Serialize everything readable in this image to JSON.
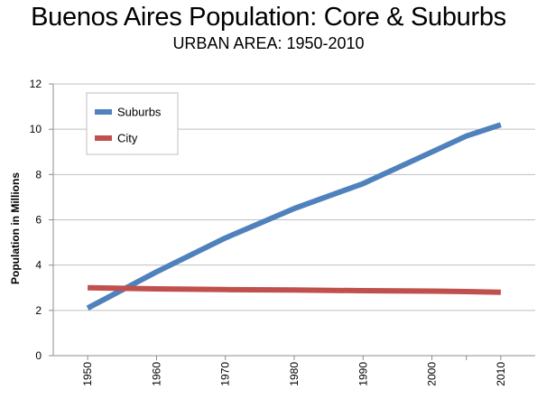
{
  "header": {
    "title": "Buenos Aires Population: Core & Suburbs",
    "subtitle": "URBAN AREA: 1950-2010"
  },
  "chart_data": {
    "type": "line",
    "title": "Buenos Aires Population: Core & Suburbs",
    "subtitle": "URBAN AREA: 1950-2010",
    "xlabel": "",
    "ylabel": "Population in Millions",
    "x": [
      1950,
      1960,
      1970,
      1980,
      1990,
      2000,
      2005,
      2010
    ],
    "xticks": [
      "1950",
      "1960",
      "1970",
      "1980",
      "1990",
      "2000",
      "2010"
    ],
    "ylim": [
      0,
      12
    ],
    "yticks": [
      "0",
      "2",
      "4",
      "6",
      "8",
      "10",
      "12"
    ],
    "grid": true,
    "legend_position": "top-left",
    "series": [
      {
        "name": "Suburbs",
        "color": "#4F81BD",
        "values": [
          2.1,
          3.7,
          5.2,
          6.5,
          7.6,
          9.0,
          9.7,
          10.2
        ]
      },
      {
        "name": "City",
        "color": "#C0504D",
        "values": [
          3.0,
          2.95,
          2.92,
          2.9,
          2.87,
          2.85,
          2.83,
          2.8
        ]
      }
    ]
  }
}
